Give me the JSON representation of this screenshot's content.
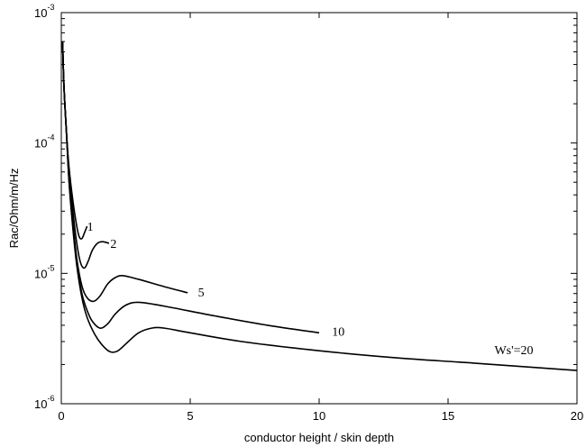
{
  "chart_data": {
    "type": "line",
    "title": "",
    "xlabel": "conductor height / skin depth",
    "ylabel": "Rac/Ohm/m/Hz",
    "xlim": [
      0,
      20
    ],
    "ylim": [
      1e-06,
      0.001
    ],
    "yscale": "log",
    "grid": false,
    "x_ticks": [
      0,
      5,
      10,
      15,
      20
    ],
    "x_tick_labels": [
      "0",
      "5",
      "10",
      "15",
      "20"
    ],
    "y_ticks": [
      1e-06,
      1e-05,
      0.0001,
      0.001
    ],
    "y_tick_labels": [
      {
        "base": "10",
        "exp": "-6"
      },
      {
        "base": "10",
        "exp": "-5"
      },
      {
        "base": "10",
        "exp": "-4"
      },
      {
        "base": "10",
        "exp": "-3"
      }
    ],
    "series": [
      {
        "label": "1",
        "label_at": [
          1.0,
          2.3e-05
        ],
        "points": [
          [
            0.05,
            0.0006
          ],
          [
            0.1,
            0.00028
          ],
          [
            0.2,
            0.00012
          ],
          [
            0.3,
            6.5e-05
          ],
          [
            0.45,
            3.6e-05
          ],
          [
            0.6,
            2.3e-05
          ],
          [
            0.7,
            1.9e-05
          ],
          [
            0.8,
            1.85e-05
          ],
          [
            0.9,
            2.05e-05
          ],
          [
            1.0,
            2.3e-05
          ]
        ]
      },
      {
        "label": "2",
        "label_at": [
          1.9,
          1.7e-05
        ],
        "points": [
          [
            0.05,
            0.0006
          ],
          [
            0.1,
            0.00028
          ],
          [
            0.2,
            0.00012
          ],
          [
            0.3,
            6e-05
          ],
          [
            0.45,
            3e-05
          ],
          [
            0.6,
            1.7e-05
          ],
          [
            0.75,
            1.2e-05
          ],
          [
            0.9,
            1.1e-05
          ],
          [
            1.05,
            1.25e-05
          ],
          [
            1.2,
            1.5e-05
          ],
          [
            1.4,
            1.7e-05
          ],
          [
            1.6,
            1.75e-05
          ],
          [
            1.85,
            1.7e-05
          ]
        ]
      },
      {
        "label": "5",
        "label_at": [
          5.3,
          7.2e-06
        ],
        "points": [
          [
            0.05,
            0.0006
          ],
          [
            0.1,
            0.00028
          ],
          [
            0.2,
            0.00012
          ],
          [
            0.3,
            5.5e-05
          ],
          [
            0.45,
            2.5e-05
          ],
          [
            0.6,
            1.3e-05
          ],
          [
            0.8,
            8e-06
          ],
          [
            1.0,
            6.5e-06
          ],
          [
            1.25,
            6.1e-06
          ],
          [
            1.5,
            6.7e-06
          ],
          [
            1.8,
            8.3e-06
          ],
          [
            2.1,
            9.3e-06
          ],
          [
            2.4,
            9.6e-06
          ],
          [
            3.0,
            9e-06
          ],
          [
            4.0,
            7.9e-06
          ],
          [
            4.9,
            7.1e-06
          ]
        ]
      },
      {
        "label": "10",
        "label_at": [
          10.5,
          3.6e-06
        ],
        "points": [
          [
            0.05,
            0.0006
          ],
          [
            0.1,
            0.00028
          ],
          [
            0.2,
            0.00012
          ],
          [
            0.3,
            5.2e-05
          ],
          [
            0.45,
            2.3e-05
          ],
          [
            0.6,
            1.2e-05
          ],
          [
            0.8,
            7e-06
          ],
          [
            1.0,
            5.2e-06
          ],
          [
            1.2,
            4.3e-06
          ],
          [
            1.5,
            3.8e-06
          ],
          [
            1.8,
            4.1e-06
          ],
          [
            2.1,
            4.9e-06
          ],
          [
            2.5,
            5.7e-06
          ],
          [
            3.0,
            6e-06
          ],
          [
            4.0,
            5.6e-06
          ],
          [
            6.0,
            4.7e-06
          ],
          [
            8.0,
            4e-06
          ],
          [
            10.0,
            3.5e-06
          ]
        ]
      },
      {
        "label": "Ws'=20",
        "label_at": [
          16.8,
          2.6e-06
        ],
        "points": [
          [
            0.05,
            0.0006
          ],
          [
            0.1,
            0.00028
          ],
          [
            0.2,
            0.00012
          ],
          [
            0.3,
            5e-05
          ],
          [
            0.45,
            2.2e-05
          ],
          [
            0.6,
            1.15e-05
          ],
          [
            0.8,
            6.5e-06
          ],
          [
            1.0,
            4.6e-06
          ],
          [
            1.3,
            3.4e-06
          ],
          [
            1.6,
            2.8e-06
          ],
          [
            1.9,
            2.5e-06
          ],
          [
            2.2,
            2.55e-06
          ],
          [
            2.6,
            3e-06
          ],
          [
            3.0,
            3.5e-06
          ],
          [
            3.5,
            3.8e-06
          ],
          [
            4.0,
            3.8e-06
          ],
          [
            5.0,
            3.5e-06
          ],
          [
            7.0,
            3e-06
          ],
          [
            10.0,
            2.55e-06
          ],
          [
            13.0,
            2.25e-06
          ],
          [
            16.0,
            2.05e-06
          ],
          [
            20.0,
            1.8e-06
          ]
        ]
      }
    ]
  }
}
